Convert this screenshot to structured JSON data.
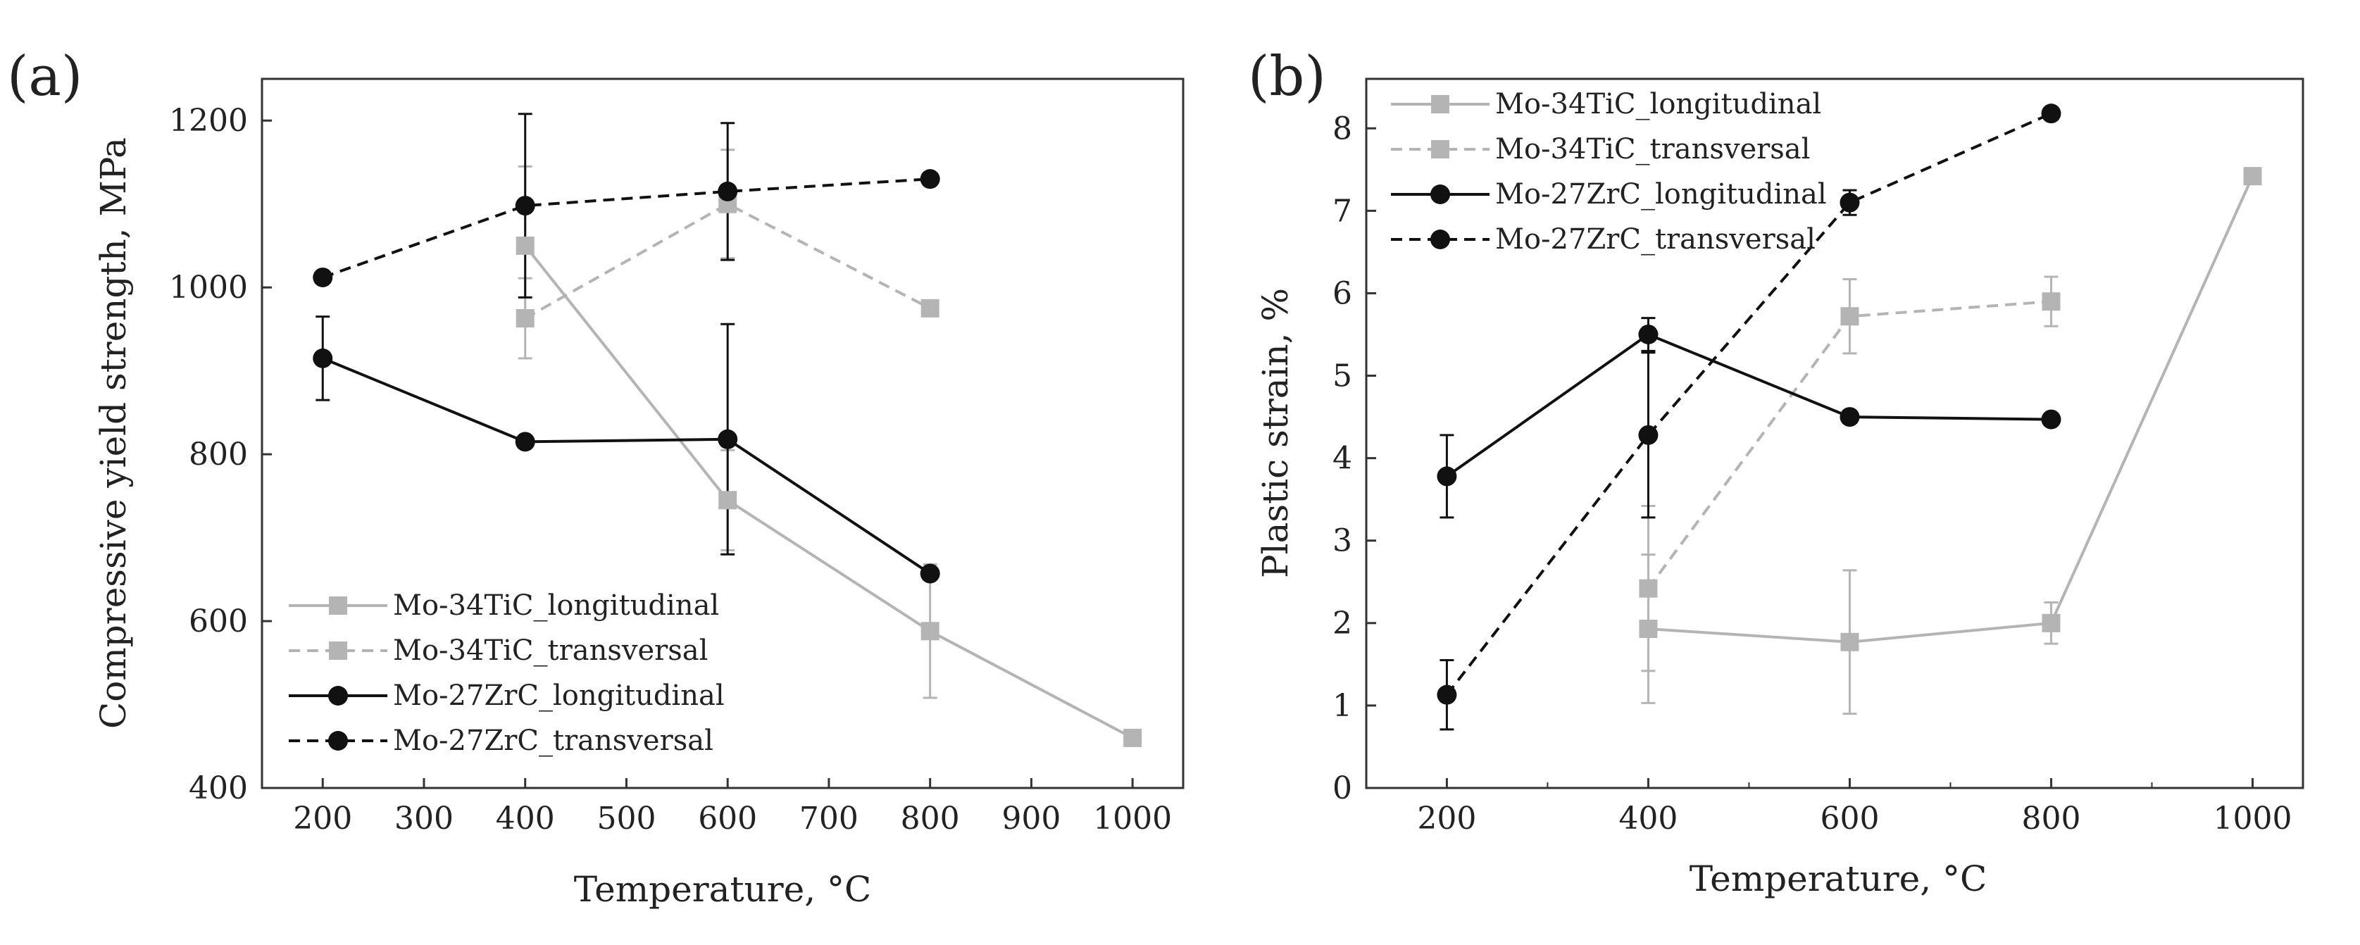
{
  "colors": {
    "black_series": "#111111",
    "gray_series": "#b4b4b4",
    "axis": "#333333"
  },
  "chart_data": [
    {
      "panel": "(a)",
      "type": "line",
      "title": "",
      "xlabel": "Temperature, °C",
      "ylabel": "Compressive yield strength, MPa",
      "xlim": [
        140,
        1050
      ],
      "ylim": [
        400,
        1250
      ],
      "x_ticks": [
        200,
        300,
        400,
        500,
        600,
        700,
        800,
        900,
        1000
      ],
      "y_ticks": [
        400,
        600,
        800,
        1000,
        1200
      ],
      "legend_position": "bottom-left",
      "series": [
        {
          "name": "Mo-34TiC_longitudinal",
          "style": "solid",
          "marker": "square",
          "color": "#b4b4b4",
          "points": [
            {
              "x": 400,
              "y": 1050,
              "err": 95
            },
            {
              "x": 600,
              "y": 745,
              "err": 60
            },
            {
              "x": 800,
              "y": 588,
              "err": 80
            },
            {
              "x": 1000,
              "y": 460,
              "err": 0
            }
          ]
        },
        {
          "name": "Mo-34TiC_transversal",
          "style": "dashed",
          "marker": "square",
          "color": "#b4b4b4",
          "points": [
            {
              "x": 400,
              "y": 963,
              "err": 48
            },
            {
              "x": 600,
              "y": 1100,
              "err": 65
            },
            {
              "x": 800,
              "y": 975,
              "err": 0
            }
          ]
        },
        {
          "name": "Mo-27ZrC_longitudinal",
          "style": "solid",
          "marker": "circle",
          "color": "#111111",
          "points": [
            {
              "x": 200,
              "y": 915,
              "err": 50
            },
            {
              "x": 400,
              "y": 815,
              "err": 0
            },
            {
              "x": 600,
              "y": 818,
              "err": 138
            },
            {
              "x": 800,
              "y": 657,
              "err": 0
            }
          ]
        },
        {
          "name": "Mo-27ZrC_transversal",
          "style": "dashed",
          "marker": "circle",
          "color": "#111111",
          "points": [
            {
              "x": 200,
              "y": 1012,
              "err": 0
            },
            {
              "x": 400,
              "y": 1098,
              "err": 110
            },
            {
              "x": 600,
              "y": 1115,
              "err": 82
            },
            {
              "x": 800,
              "y": 1130,
              "err": 0
            }
          ]
        }
      ]
    },
    {
      "panel": "(b)",
      "type": "line",
      "title": "",
      "xlabel": "Temperature, °C",
      "ylabel": "Plastic strain, %",
      "xlim": [
        120,
        1050
      ],
      "ylim": [
        0,
        8.6
      ],
      "x_ticks": [
        200,
        400,
        600,
        800,
        1000
      ],
      "y_ticks": [
        0,
        1,
        2,
        3,
        4,
        5,
        6,
        7,
        8
      ],
      "legend_position": "top-left",
      "series": [
        {
          "name": "Mo-34TiC_longitudinal",
          "style": "solid",
          "marker": "square",
          "color": "#b4b4b4",
          "points": [
            {
              "x": 400,
              "y": 1.93,
              "err": 0.9
            },
            {
              "x": 600,
              "y": 1.77,
              "err": 0.87
            },
            {
              "x": 800,
              "y": 2.0,
              "err": 0.25
            },
            {
              "x": 1000,
              "y": 7.42,
              "err": 0
            }
          ]
        },
        {
          "name": "Mo-34TiC_transversal",
          "style": "dashed",
          "marker": "square",
          "color": "#b4b4b4",
          "points": [
            {
              "x": 400,
              "y": 2.42,
              "err": 1.0
            },
            {
              "x": 600,
              "y": 5.72,
              "err": 0.45
            },
            {
              "x": 800,
              "y": 5.9,
              "err": 0.3
            }
          ]
        },
        {
          "name": "Mo-27ZrC_longitudinal",
          "style": "solid",
          "marker": "circle",
          "color": "#111111",
          "points": [
            {
              "x": 200,
              "y": 3.78,
              "err": 0.5
            },
            {
              "x": 400,
              "y": 5.5,
              "err": 0.2
            },
            {
              "x": 600,
              "y": 4.5,
              "err": 0
            },
            {
              "x": 800,
              "y": 4.47,
              "err": 0
            }
          ]
        },
        {
          "name": "Mo-27ZrC_transversal",
          "style": "dashed",
          "marker": "circle",
          "color": "#111111",
          "points": [
            {
              "x": 200,
              "y": 1.13,
              "err": 0.42
            },
            {
              "x": 400,
              "y": 4.28,
              "err": 1.0
            },
            {
              "x": 600,
              "y": 7.1,
              "err": 0.15
            },
            {
              "x": 800,
              "y": 8.18,
              "err": 0
            }
          ]
        }
      ]
    }
  ]
}
